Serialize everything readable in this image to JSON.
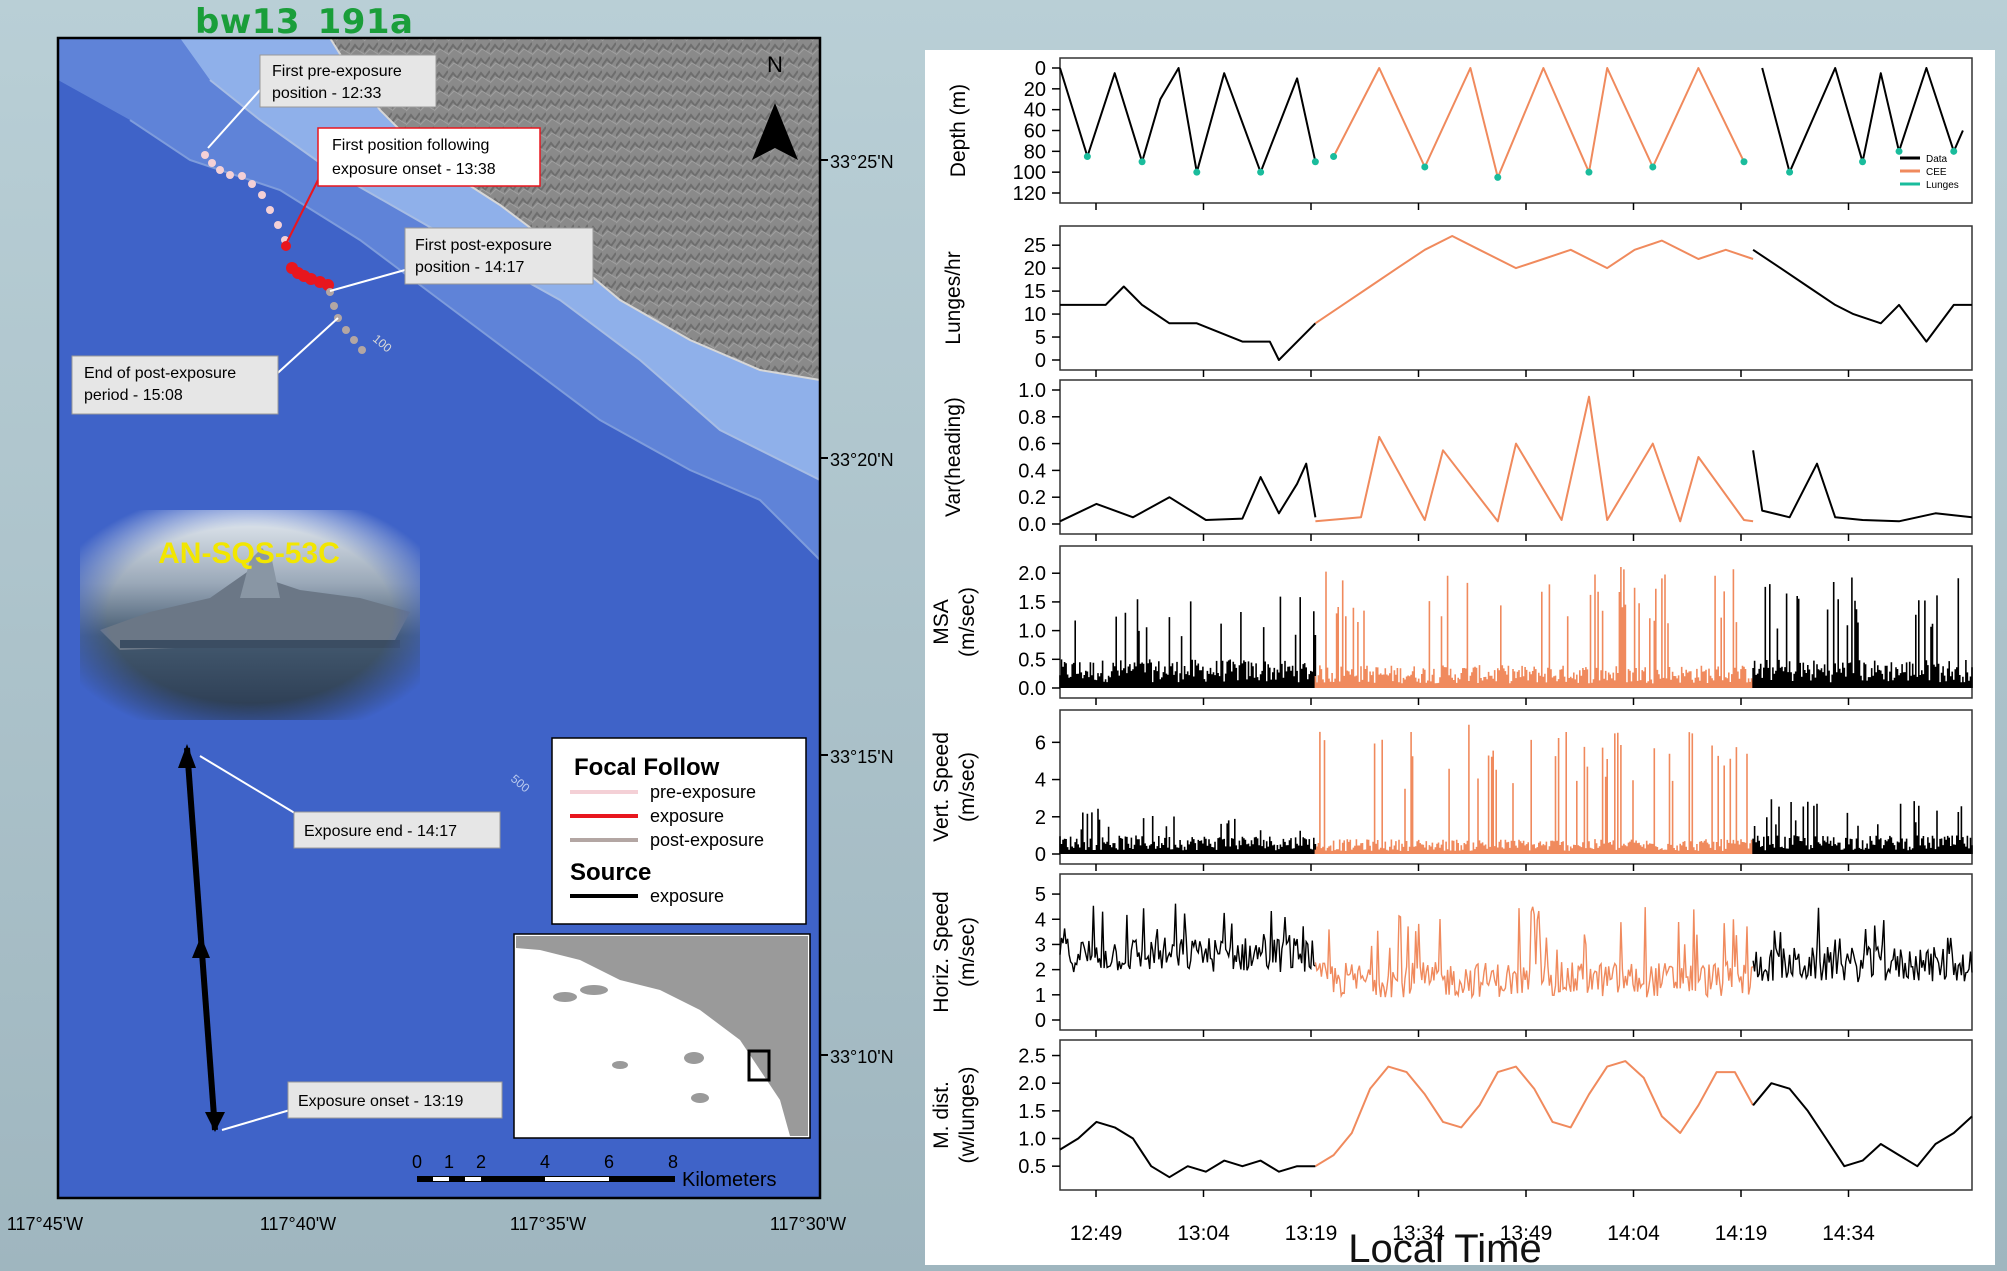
{
  "header": {
    "dataset_id": "bw13_191a"
  },
  "map": {
    "north_label": "N",
    "lat_labels": [
      "33°25'N",
      "33°20'N",
      "33°15'N",
      "33°10'N"
    ],
    "lon_labels": [
      "117°45'W",
      "117°40'W",
      "117°35'W",
      "117°30'W"
    ],
    "contours": [
      "100",
      "500"
    ],
    "ship_label": "AN-SQS-53C",
    "callouts": {
      "first_pre_line1": "First pre-exposure",
      "first_pre_line2": "position - 12:33",
      "first_follow_line1": "First position following",
      "first_follow_line2": "exposure onset - 13:38",
      "first_post_line1": "First post-exposure",
      "first_post_line2": "position - 14:17",
      "end_post_line1": "End of post-exposure",
      "end_post_line2": "period - 15:08",
      "exposure_end": "Exposure end - 14:17",
      "exposure_onset": "Exposure onset - 13:19"
    },
    "legend": {
      "title1": "Focal Follow",
      "item_pre": "pre-exposure",
      "item_exposure": "exposure",
      "item_post": "post-exposure",
      "title2": "Source",
      "item_source": "exposure"
    },
    "scalebar": {
      "ticks": [
        "0",
        "1",
        "2",
        "4",
        "6",
        "8"
      ],
      "unit": "Kilometers"
    },
    "colors": {
      "ocean_deep": "#3f63c8",
      "ocean_shelf": "#8fb0ea",
      "land": "#8a8a8a",
      "pre": "#f4d0d6",
      "exposure": "#e8161e",
      "post": "#b3a6a3",
      "source": "#000000"
    }
  },
  "chart_data": [
    {
      "type": "line",
      "ylabel": "Depth (m)",
      "yticks": [
        "0",
        "20",
        "40",
        "60",
        "80",
        "100",
        "120"
      ],
      "ylim": [
        120,
        0
      ],
      "legend": [
        "Data",
        "CEE",
        "Lunges"
      ],
      "series": [
        {
          "name": "Data",
          "x": [
            0,
            3,
            6,
            9,
            11,
            13,
            15,
            18,
            22,
            26,
            28
          ],
          "y": [
            0,
            85,
            5,
            90,
            30,
            0,
            100,
            5,
            100,
            10,
            90
          ]
        },
        {
          "name": "CEE",
          "x": [
            30,
            35,
            40,
            45,
            48,
            53,
            58,
            60,
            65,
            70,
            75
          ],
          "y": [
            85,
            0,
            95,
            0,
            105,
            0,
            100,
            0,
            95,
            0,
            90
          ]
        },
        {
          "name": "Data",
          "x": [
            77,
            80,
            85,
            88,
            90,
            92,
            95,
            98,
            99
          ],
          "y": [
            0,
            100,
            0,
            90,
            5,
            80,
            0,
            80,
            60
          ]
        }
      ]
    },
    {
      "type": "line",
      "ylabel": "Lunges/hr",
      "yticks": [
        "0",
        "5",
        "10",
        "15",
        "20",
        "25"
      ],
      "ylim": [
        0,
        27
      ],
      "series": [
        {
          "name": "Data",
          "x": [
            0,
            5,
            7,
            9,
            12,
            15,
            20,
            23,
            24,
            28
          ],
          "y": [
            12,
            12,
            16,
            12,
            8,
            8,
            4,
            4,
            0,
            8
          ]
        },
        {
          "name": "CEE",
          "x": [
            28,
            31,
            34,
            37,
            40,
            43,
            46,
            50,
            53,
            56,
            60,
            63,
            66,
            70,
            73,
            76
          ],
          "y": [
            8,
            12,
            16,
            20,
            24,
            27,
            24,
            20,
            22,
            24,
            20,
            24,
            26,
            22,
            24,
            22
          ]
        },
        {
          "name": "Data",
          "x": [
            76,
            79,
            82,
            85,
            87,
            90,
            92,
            95,
            98,
            100
          ],
          "y": [
            24,
            20,
            16,
            12,
            10,
            8,
            12,
            4,
            12,
            12
          ]
        }
      ]
    },
    {
      "type": "line",
      "ylabel": "Var(heading)",
      "yticks": [
        "0.0",
        "0.2",
        "0.4",
        "0.6",
        "0.8",
        "1.0"
      ],
      "ylim": [
        0,
        1
      ],
      "series": [
        {
          "name": "Data",
          "x": [
            0,
            4,
            8,
            12,
            16,
            20,
            22,
            24,
            26,
            27,
            28
          ],
          "y": [
            0.02,
            0.15,
            0.05,
            0.2,
            0.03,
            0.04,
            0.35,
            0.08,
            0.3,
            0.45,
            0.05
          ]
        },
        {
          "name": "CEE",
          "x": [
            28,
            33,
            35,
            40,
            42,
            48,
            50,
            55,
            58,
            60,
            65,
            68,
            70,
            75,
            76
          ],
          "y": [
            0.02,
            0.05,
            0.65,
            0.03,
            0.55,
            0.02,
            0.6,
            0.03,
            0.95,
            0.03,
            0.6,
            0.02,
            0.5,
            0.03,
            0.02
          ]
        },
        {
          "name": "Data",
          "x": [
            76,
            77,
            80,
            83,
            85,
            88,
            92,
            96,
            100
          ],
          "y": [
            0.55,
            0.1,
            0.05,
            0.45,
            0.05,
            0.03,
            0.02,
            0.08,
            0.05
          ]
        }
      ]
    },
    {
      "type": "bar",
      "ylabel_line1": "MSA",
      "ylabel_line2": "(m/sec)",
      "yticks": [
        "0.0",
        "0.5",
        "1.0",
        "1.5",
        "2.0"
      ],
      "ylim": [
        0,
        2.3
      ],
      "series": [
        {
          "name": "Data",
          "range": [
            0,
            28
          ],
          "typical": 0.5,
          "peak": 1.6
        },
        {
          "name": "CEE",
          "range": [
            28,
            76
          ],
          "typical": 0.4,
          "peak": 2.2
        },
        {
          "name": "Data",
          "range": [
            76,
            100
          ],
          "typical": 0.5,
          "peak": 2.0
        }
      ]
    },
    {
      "type": "bar",
      "ylabel_line1": "Vert. Speed",
      "ylabel_line2": "(m/sec)",
      "yticks": [
        "0",
        "2",
        "4",
        "6"
      ],
      "ylim": [
        0,
        7.2
      ],
      "series": [
        {
          "name": "Data",
          "range": [
            0,
            28
          ],
          "typical": 1.0,
          "peak": 2.5
        },
        {
          "name": "CEE",
          "range": [
            28,
            76
          ],
          "typical": 0.8,
          "peak": 7.0
        },
        {
          "name": "Data",
          "range": [
            76,
            100
          ],
          "typical": 1.0,
          "peak": 3.0
        }
      ]
    },
    {
      "type": "line",
      "ylabel_line1": "Horiz. Speed",
      "ylabel_line2": "(m/sec)",
      "yticks": [
        "0",
        "1",
        "2",
        "3",
        "4",
        "5"
      ],
      "ylim": [
        0,
        5.4
      ],
      "series": [
        {
          "name": "Data",
          "range": [
            0,
            28
          ],
          "typical": 2.6,
          "peak": 4.8
        },
        {
          "name": "CEE",
          "range": [
            28,
            76
          ],
          "typical": 1.6,
          "peak": 4.6
        },
        {
          "name": "Data",
          "range": [
            76,
            100
          ],
          "typical": 2.2,
          "peak": 4.5
        }
      ]
    },
    {
      "type": "line",
      "ylabel_line1": "M. dist.",
      "ylabel_line2": "(w/lunges)",
      "yticks": [
        "0.5",
        "1.0",
        "1.5",
        "2.0",
        "2.5"
      ],
      "ylim": [
        0.25,
        2.6
      ],
      "series": [
        {
          "name": "Data",
          "x": [
            0,
            2,
            4,
            6,
            8,
            10,
            12,
            14,
            16,
            18,
            20,
            22,
            24,
            26,
            28
          ],
          "y": [
            0.8,
            1.0,
            1.3,
            1.2,
            1.0,
            0.5,
            0.3,
            0.5,
            0.4,
            0.6,
            0.5,
            0.6,
            0.4,
            0.5,
            0.5
          ]
        },
        {
          "name": "CEE",
          "x": [
            28,
            30,
            32,
            34,
            36,
            38,
            40,
            42,
            44,
            46,
            48,
            50,
            52,
            54,
            56,
            58,
            60,
            62,
            64,
            66,
            68,
            70,
            72,
            74,
            76
          ],
          "y": [
            0.5,
            0.7,
            1.1,
            1.9,
            2.3,
            2.2,
            1.8,
            1.3,
            1.2,
            1.6,
            2.2,
            2.3,
            1.9,
            1.3,
            1.2,
            1.8,
            2.3,
            2.4,
            2.1,
            1.4,
            1.1,
            1.6,
            2.2,
            2.2,
            1.6
          ]
        },
        {
          "name": "Data",
          "x": [
            76,
            78,
            80,
            82,
            84,
            86,
            88,
            90,
            92,
            94,
            96,
            98,
            100
          ],
          "y": [
            1.6,
            2.0,
            1.9,
            1.5,
            1.0,
            0.5,
            0.6,
            0.9,
            0.7,
            0.5,
            0.9,
            1.1,
            1.4
          ]
        }
      ]
    }
  ],
  "time_axis": {
    "xlabel": "Local Time",
    "ticks": [
      "12:49",
      "13:04",
      "13:19",
      "13:34",
      "13:49",
      "14:04",
      "14:19",
      "14:34"
    ]
  },
  "series_colors": {
    "Data": "#000000",
    "CEE": "#f08a5d",
    "Lunges": "#1abc9c"
  }
}
